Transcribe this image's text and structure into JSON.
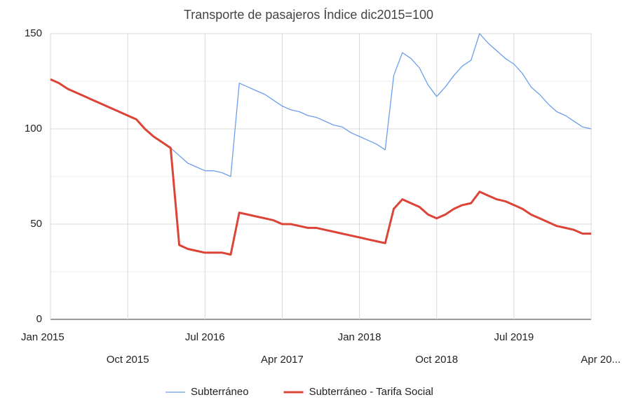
{
  "chart_data": {
    "type": "line",
    "title": "Transporte de pasajeros Índice dic2015=100",
    "x": [
      "2015-01",
      "2015-02",
      "2015-03",
      "2015-04",
      "2015-05",
      "2015-06",
      "2015-07",
      "2015-08",
      "2015-09",
      "2015-10",
      "2015-11",
      "2015-12",
      "2016-01",
      "2016-02",
      "2016-03",
      "2016-04",
      "2016-05",
      "2016-06",
      "2016-07",
      "2016-08",
      "2016-09",
      "2016-10",
      "2016-11",
      "2016-12",
      "2017-01",
      "2017-02",
      "2017-03",
      "2017-04",
      "2017-05",
      "2017-06",
      "2017-07",
      "2017-08",
      "2017-09",
      "2017-10",
      "2017-11",
      "2017-12",
      "2018-01",
      "2018-02",
      "2018-03",
      "2018-04",
      "2018-05",
      "2018-06",
      "2018-07",
      "2018-08",
      "2018-09",
      "2018-10",
      "2018-11",
      "2018-12",
      "2019-01",
      "2019-02",
      "2019-03",
      "2019-04",
      "2019-05",
      "2019-06",
      "2019-07",
      "2019-08",
      "2019-09",
      "2019-10",
      "2019-11",
      "2019-12",
      "2020-01",
      "2020-02",
      "2020-03",
      "2020-04"
    ],
    "series": [
      {
        "name": "Subterráneo",
        "color": "#6d9eeb",
        "width": 1.3,
        "values": [
          126,
          124,
          121,
          119,
          117,
          115,
          113,
          111,
          109,
          107,
          105,
          100,
          96,
          93,
          90,
          86,
          82,
          80,
          78,
          78,
          77,
          75,
          124,
          122,
          120,
          118,
          115,
          112,
          110,
          109,
          107,
          106,
          104,
          102,
          101,
          98,
          96,
          94,
          92,
          89,
          128,
          140,
          137,
          132,
          123,
          117,
          122,
          128,
          133,
          136,
          150,
          145,
          141,
          137,
          134,
          129,
          122,
          118,
          113,
          109,
          107,
          104,
          101,
          100
        ]
      },
      {
        "name": "Subterráneo - Tarifa Social",
        "color": "#db4437",
        "width": 3,
        "values": [
          126,
          124,
          121,
          119,
          117,
          115,
          113,
          111,
          109,
          107,
          105,
          100,
          96,
          93,
          90,
          39,
          37,
          36,
          35,
          35,
          35,
          34,
          56,
          55,
          54,
          53,
          52,
          50,
          50,
          49,
          48,
          48,
          47,
          46,
          45,
          44,
          43,
          42,
          41,
          40,
          58,
          63,
          61,
          59,
          55,
          53,
          55,
          58,
          60,
          61,
          67,
          65,
          63,
          62,
          60,
          58,
          55,
          53,
          51,
          49,
          48,
          47,
          45,
          45
        ]
      }
    ],
    "ylim": [
      0,
      150
    ],
    "yticks": [
      0,
      50,
      100,
      150
    ],
    "yminor": [
      25,
      75,
      125
    ],
    "xticks": [
      {
        "value": "2015-01",
        "label": "Jan 2015"
      },
      {
        "value": "2015-10",
        "label": "Oct 2015"
      },
      {
        "value": "2016-07",
        "label": "Jul 2016"
      },
      {
        "value": "2017-04",
        "label": "Apr 2017"
      },
      {
        "value": "2018-01",
        "label": "Jan 2018"
      },
      {
        "value": "2018-10",
        "label": "Oct 2018"
      },
      {
        "value": "2019-07",
        "label": "Jul 2019"
      },
      {
        "value": "2020-04",
        "label": "Apr 20..."
      }
    ],
    "grid": true,
    "legend": "bottom"
  }
}
